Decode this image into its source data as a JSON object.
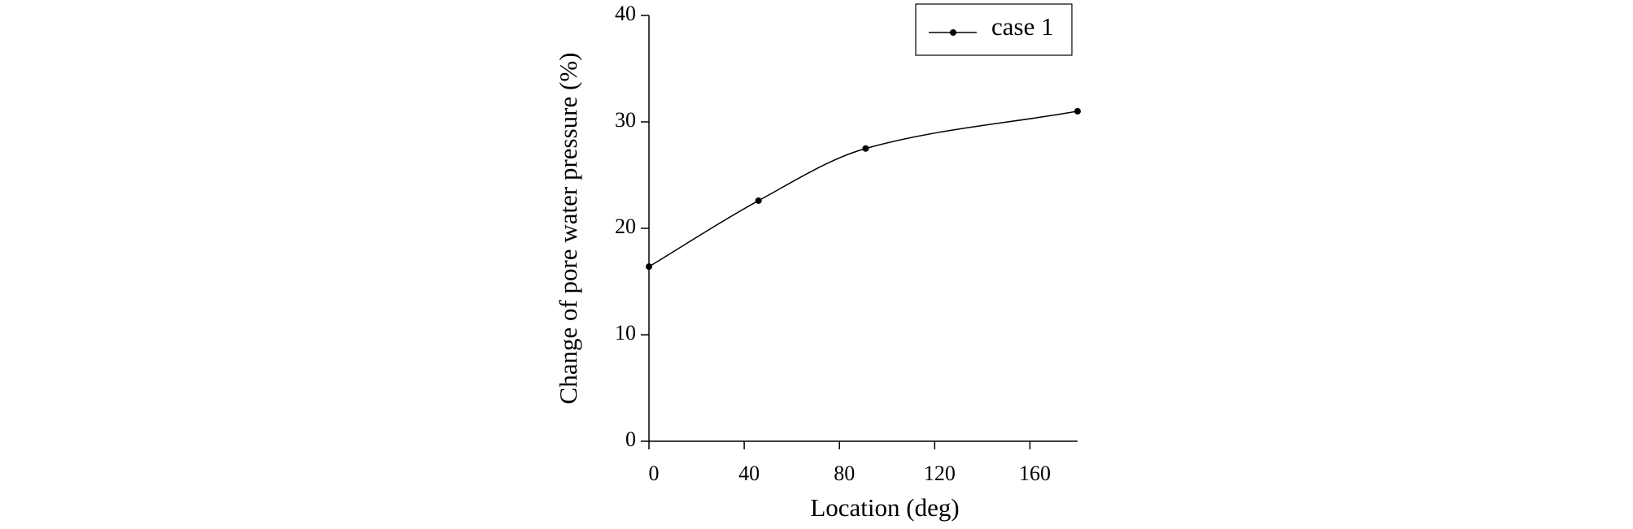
{
  "chart_data": {
    "type": "line",
    "x": [
      0,
      46,
      91,
      180
    ],
    "series": [
      {
        "name": "case 1",
        "color": "#000000",
        "values": [
          16.4,
          22.6,
          27.5,
          31.0
        ]
      }
    ],
    "xlabel": "Location (deg)",
    "ylabel": "Change of pore water pressure (%)",
    "xlim": [
      0,
      180
    ],
    "xticks": [
      0,
      40,
      80,
      120,
      160
    ],
    "ylim": [
      0,
      40
    ],
    "yticks": [
      0,
      10,
      20,
      30,
      40
    ],
    "legend": "upper right"
  }
}
